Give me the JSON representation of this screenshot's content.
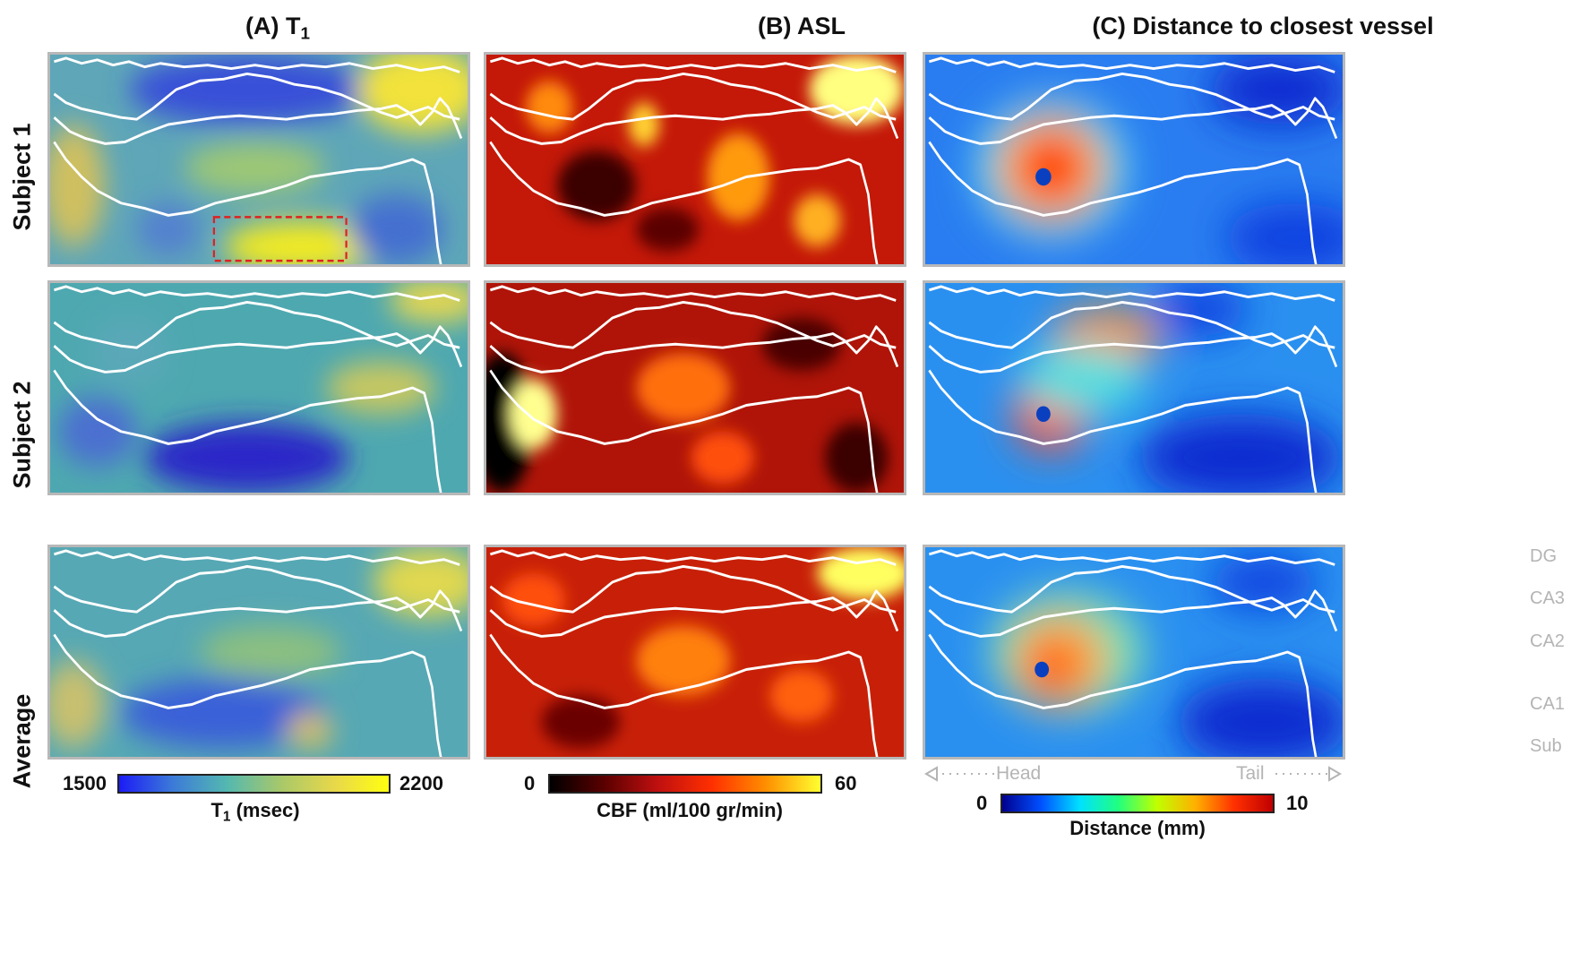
{
  "columns": {
    "a": {
      "title_pre": "(A) T",
      "title_sub": "1"
    },
    "b": {
      "title": "(B) ASL"
    },
    "c": {
      "title": "(C) Distance to closest vessel"
    }
  },
  "rows": [
    "Subject 1",
    "Subject 2",
    "Average"
  ],
  "subfields": [
    "DG",
    "CA3",
    "CA2",
    "CA1",
    "Sub"
  ],
  "axis": {
    "head": "Head",
    "tail": "Tail"
  },
  "colorbars": {
    "t1": {
      "min": "1500",
      "max": "2200",
      "label_pre": "T",
      "label_sub": "1",
      "label_post": " (msec)",
      "colors": [
        "#1c1cf5",
        "#3c7bd8",
        "#54b8b0",
        "#a8c86a",
        "#e8d84a",
        "#ffff10"
      ]
    },
    "cbf": {
      "min": "0",
      "max": "60",
      "label": "CBF (ml/100 gr/min)",
      "colors": [
        "#000000",
        "#5a0000",
        "#c01010",
        "#ff3000",
        "#ff9000",
        "#ffff30"
      ]
    },
    "dist": {
      "min": "0",
      "max": "10",
      "label": "Distance (mm)",
      "colors": [
        "#00008f",
        "#0050ff",
        "#00e0ff",
        "#20ff80",
        "#c0ff00",
        "#ffb000",
        "#ff3000",
        "#c00000"
      ]
    }
  },
  "colors": {
    "panel_border": "#b8b8b8",
    "roi_box": "#e02020",
    "contour": "#ffffff",
    "axis_gray": "#b4b4b4"
  }
}
